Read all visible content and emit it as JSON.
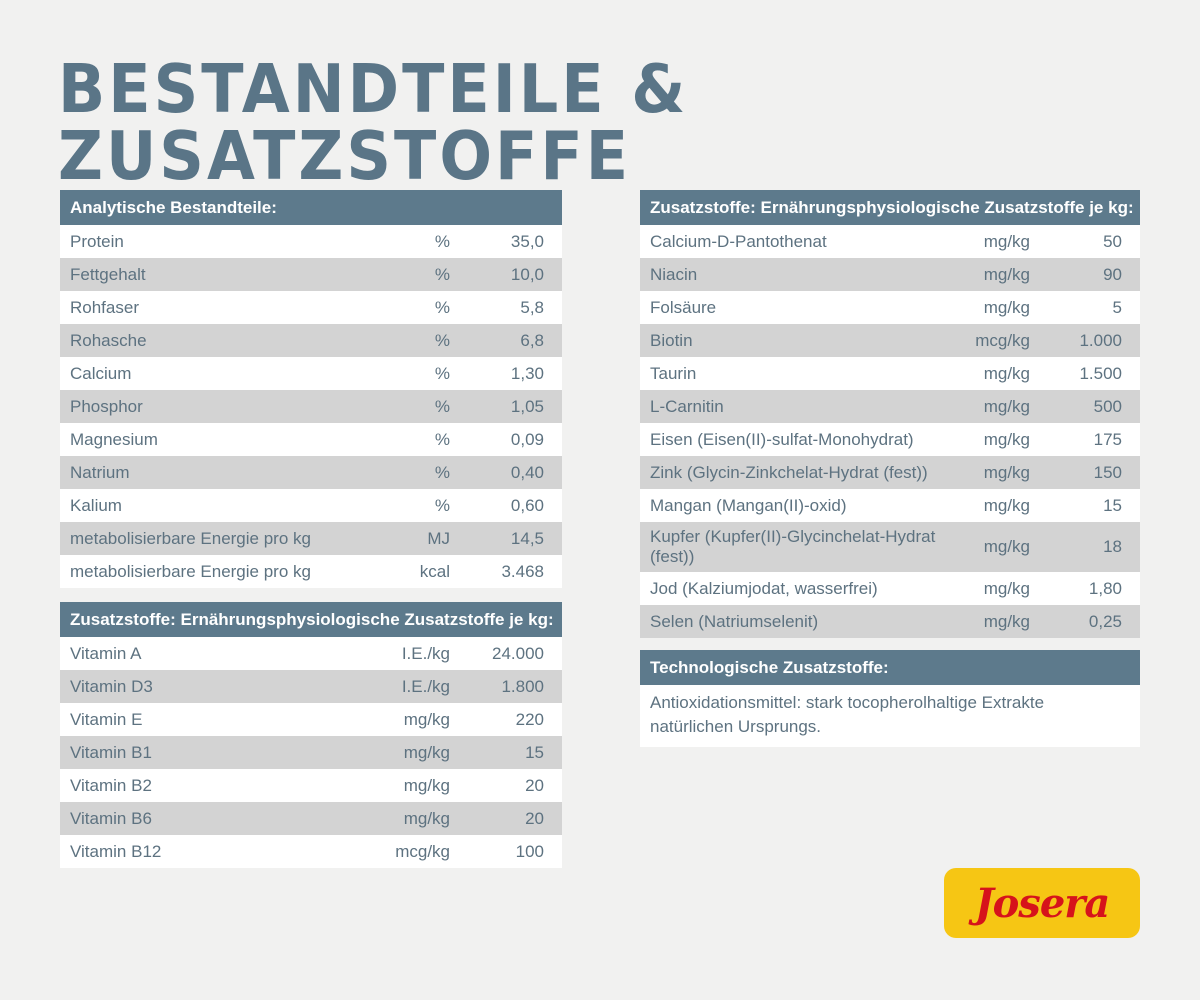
{
  "title": "Bestandteile & Zusatzstoffe",
  "analytic": {
    "header": "Analytische Bestandteile:",
    "rows": [
      {
        "name": "Protein",
        "unit": "%",
        "value": "35,0"
      },
      {
        "name": "Fettgehalt",
        "unit": "%",
        "value": "10,0"
      },
      {
        "name": "Rohfaser",
        "unit": "%",
        "value": "5,8"
      },
      {
        "name": "Rohasche",
        "unit": "%",
        "value": "6,8"
      },
      {
        "name": "Calcium",
        "unit": "%",
        "value": "1,30"
      },
      {
        "name": "Phosphor",
        "unit": "%",
        "value": "1,05"
      },
      {
        "name": "Magnesium",
        "unit": "%",
        "value": "0,09"
      },
      {
        "name": "Natrium",
        "unit": "%",
        "value": "0,40"
      },
      {
        "name": "Kalium",
        "unit": "%",
        "value": "0,60"
      },
      {
        "name": "metabolisierbare Energie pro kg",
        "unit": "MJ",
        "value": "14,5"
      },
      {
        "name": "metabolisierbare Energie pro kg",
        "unit": "kcal",
        "value": "3.468"
      }
    ]
  },
  "vitamins": {
    "header": "Zusatzstoffe: Ernährungsphysiologische Zusatzstoffe je kg:",
    "rows": [
      {
        "name": "Vitamin A",
        "unit": "I.E./kg",
        "value": "24.000"
      },
      {
        "name": "Vitamin D3",
        "unit": "I.E./kg",
        "value": "1.800"
      },
      {
        "name": "Vitamin E",
        "unit": "mg/kg",
        "value": "220"
      },
      {
        "name": "Vitamin B1",
        "unit": "mg/kg",
        "value": "15"
      },
      {
        "name": "Vitamin B2",
        "unit": "mg/kg",
        "value": "20"
      },
      {
        "name": "Vitamin B6",
        "unit": "mg/kg",
        "value": "20"
      },
      {
        "name": "Vitamin B12",
        "unit": "mcg/kg",
        "value": "100"
      }
    ]
  },
  "minerals": {
    "header": "Zusatzstoffe: Ernährungsphysiologische Zusatzstoffe je kg:",
    "rows": [
      {
        "name": "Calcium-D-Pantothenat",
        "unit": "mg/kg",
        "value": "50"
      },
      {
        "name": "Niacin",
        "unit": "mg/kg",
        "value": "90"
      },
      {
        "name": "Folsäure",
        "unit": "mg/kg",
        "value": "5"
      },
      {
        "name": "Biotin",
        "unit": "mcg/kg",
        "value": "1.000"
      },
      {
        "name": "Taurin",
        "unit": "mg/kg",
        "value": "1.500"
      },
      {
        "name": "L-Carnitin",
        "unit": "mg/kg",
        "value": "500"
      },
      {
        "name": "Eisen (Eisen(II)-sulfat-Monohydrat)",
        "unit": "mg/kg",
        "value": "175"
      },
      {
        "name": "Zink (Glycin-Zinkchelat-Hydrat (fest))",
        "unit": "mg/kg",
        "value": "150"
      },
      {
        "name": "Mangan (Mangan(II)-oxid)",
        "unit": "mg/kg",
        "value": "15"
      },
      {
        "name": "Kupfer (Kupfer(II)-Glycinchelat-Hydrat (fest))",
        "unit": "mg/kg",
        "value": "18"
      },
      {
        "name": "Jod (Kalziumjodat, wasserfrei)",
        "unit": "mg/kg",
        "value": "1,80"
      },
      {
        "name": "Selen (Natriumselenit)",
        "unit": "mg/kg",
        "value": "0,25"
      }
    ]
  },
  "technological": {
    "header": "Technologische Zusatzstoffe:",
    "text": "Antioxidationsmittel: stark tocopherolhaltige Extrakte natürlichen Ursprungs."
  },
  "logo": {
    "text": "Josera"
  },
  "colors": {
    "header_bg": "#5d7a8c",
    "title": "#5a7587",
    "alt_row": "#d3d3d3",
    "logo_bg": "#f6c614",
    "logo_text": "#d6131b"
  }
}
